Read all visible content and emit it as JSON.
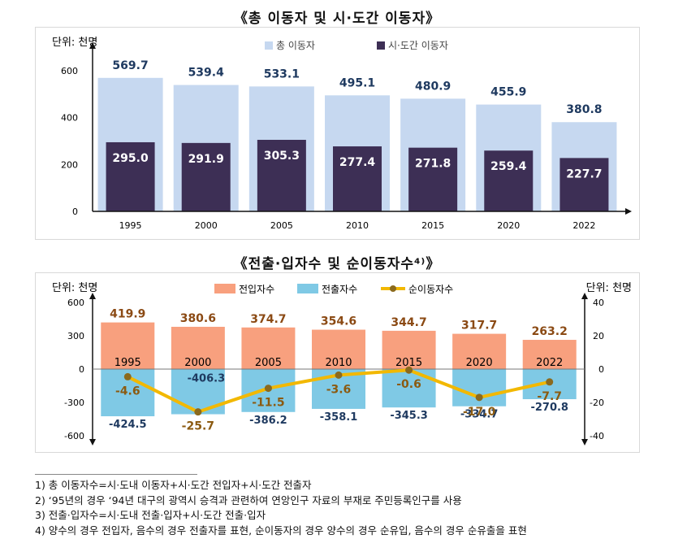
{
  "chart_data": [
    {
      "type": "bar",
      "title": "《총 이동자 및 시·도간 이동자》",
      "unit_label": "단위: 천명",
      "categories": [
        "1995",
        "2000",
        "2005",
        "2010",
        "2015",
        "2020",
        "2022"
      ],
      "series": [
        {
          "name": "총 이동자",
          "values": [
            569.7,
            539.4,
            533.1,
            495.1,
            480.9,
            455.9,
            380.8
          ],
          "labels": [
            "569.7",
            "539.4",
            "533.1",
            "495.1",
            "480.9",
            "455.9",
            "380.8"
          ],
          "color": "#c6d8f0"
        },
        {
          "name": "시·도간 이동자",
          "values": [
            295.0,
            291.9,
            305.3,
            277.4,
            271.8,
            259.4,
            227.7
          ],
          "labels": [
            "295.0",
            "291.9",
            "305.3",
            "277.4",
            "271.8",
            "259.4",
            "227.7"
          ],
          "color": "#3d2f55"
        }
      ],
      "yticks": [
        0,
        200,
        400,
        600
      ],
      "yticks_labels": [
        "0",
        "200",
        "400",
        "600"
      ],
      "ylim": [
        0,
        680
      ]
    },
    {
      "type": "bar",
      "title": "《전출·입자수 및 순이동자수⁴⁾》",
      "unit_label_left": "단위: 천명",
      "unit_label_right": "단위: 천명",
      "categories": [
        "1995",
        "2000",
        "2005",
        "2010",
        "2015",
        "2020",
        "2022"
      ],
      "series": [
        {
          "name": "전입자수",
          "values": [
            419.9,
            380.6,
            374.7,
            354.6,
            344.7,
            317.7,
            263.2
          ],
          "labels": [
            "419.9",
            "380.6",
            "374.7",
            "354.6",
            "344.7",
            "317.7",
            "263.2"
          ],
          "color": "#f8a07e",
          "axis": "left"
        },
        {
          "name": "전출자수",
          "values": [
            -424.5,
            -406.3,
            -386.2,
            -358.1,
            -345.3,
            -334.7,
            -270.8
          ],
          "labels": [
            "-424.5",
            "-406.3",
            "-386.2",
            "-358.1",
            "-345.3",
            "-334.7",
            "-270.8"
          ],
          "color": "#7fc9e5",
          "axis": "left"
        },
        {
          "name": "순이동자수",
          "type": "line",
          "values": [
            -4.6,
            -25.7,
            -11.5,
            -3.6,
            -0.6,
            -17.0,
            -7.7
          ],
          "labels": [
            "-4.6",
            "-25.7",
            "-11.5",
            "-3.6",
            "-0.6",
            "-17.0",
            "-7.7"
          ],
          "color": "#f2b800",
          "marker_color": "#8b6a1e",
          "axis": "right"
        }
      ],
      "yticks_left": [
        -600,
        -300,
        0,
        300,
        600
      ],
      "yticks_left_labels": [
        "-600",
        "-300",
        "0",
        "300",
        "600"
      ],
      "yticks_right": [
        -40,
        -20,
        0,
        20,
        40
      ],
      "yticks_right_labels": [
        "-40",
        "-20",
        "0",
        "20",
        "40"
      ],
      "ylim_left": [
        -600,
        600
      ],
      "ylim_right": [
        -40,
        40
      ]
    }
  ],
  "notes": [
    "1) 총 이동자수=시·도내 이동자+시·도간 전입자+시·도간 전출자",
    "2) ‘95년의 경우 ‘94년 대구의 광역시 승격과 관련하여 연앙인구 자료의 부재로 주민등록인구를 사용",
    "3) 전출·입자수=시·도내 전출·입자+시·도간 전출·입자",
    "4) 양수의 경우 전입자, 음수의 경우 전출자를 표현, 순이동자의 경우 양수의 경우 순유입, 음수의 경우 순유출을 표현"
  ]
}
